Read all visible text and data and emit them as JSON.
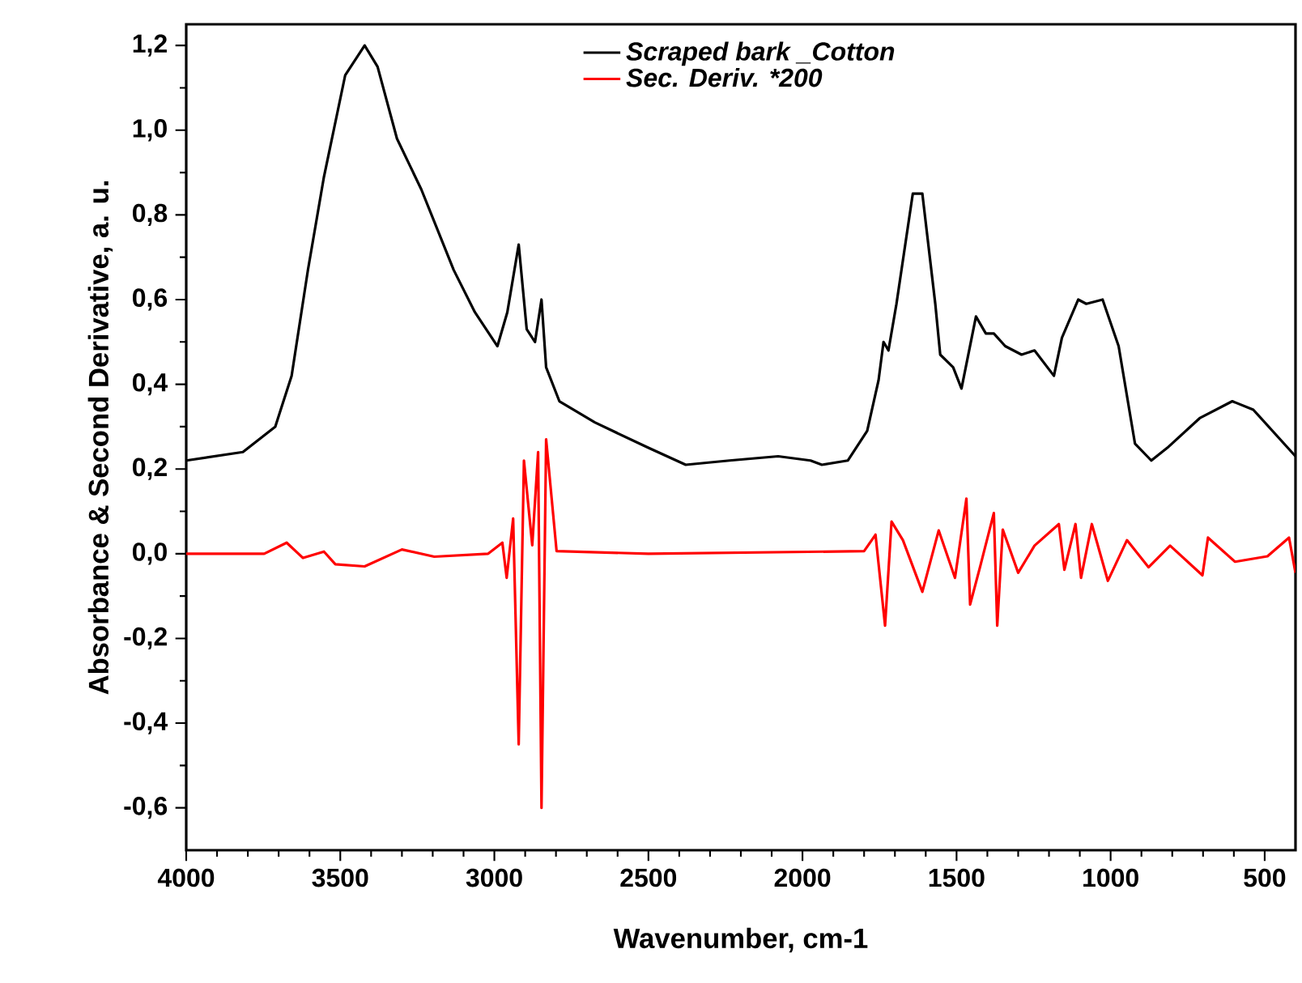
{
  "chart_data": {
    "type": "line",
    "xlabel": "Wavenumber, cm-1",
    "ylabel": "Absorbance & Second Derivative, a. u.",
    "xlim": [
      4000,
      400
    ],
    "ylim": [
      -0.7,
      1.25
    ],
    "xticks": [
      4000,
      3500,
      3000,
      2500,
      2000,
      1500,
      1000,
      500
    ],
    "yticks": [
      {
        "value": -0.6,
        "label": "-0,6"
      },
      {
        "value": -0.4,
        "label": "-0,4"
      },
      {
        "value": -0.2,
        "label": "-0,2"
      },
      {
        "value": 0,
        "label": "0,0"
      },
      {
        "value": 0.2,
        "label": "0,2"
      },
      {
        "value": 0.4,
        "label": "0,4"
      },
      {
        "value": 0.6,
        "label": "0,6"
      },
      {
        "value": 0.8,
        "label": "0,8"
      },
      {
        "value": 1.0,
        "label": "1,0"
      },
      {
        "value": 1.2,
        "label": "1,2"
      }
    ],
    "legend": "top",
    "grid": false,
    "marker": "none",
    "line_style": "solid",
    "series": [
      {
        "name": "Scraped bark _Cotton",
        "color": "#000000",
        "x": [
          4000,
          3816,
          3711,
          3658,
          3605,
          3553,
          3484,
          3421,
          3379,
          3316,
          3237,
          3132,
          3063,
          2990,
          2958,
          2921,
          2895,
          2868,
          2847,
          2832,
          2789,
          2674,
          2500,
          2379,
          2237,
          2079,
          1974,
          1937,
          1853,
          1790,
          1753,
          1737,
          1721,
          1695,
          1642,
          1611,
          1569,
          1553,
          1511,
          1484,
          1437,
          1405,
          1379,
          1342,
          1289,
          1247,
          1184,
          1158,
          1105,
          1079,
          1026,
          974,
          921,
          868,
          816,
          711,
          605,
          537,
          400
        ],
        "values": [
          0.22,
          0.24,
          0.3,
          0.42,
          0.67,
          0.89,
          1.13,
          1.2,
          1.15,
          0.98,
          0.86,
          0.67,
          0.57,
          0.49,
          0.57,
          0.73,
          0.53,
          0.5,
          0.6,
          0.44,
          0.36,
          0.31,
          0.25,
          0.21,
          0.22,
          0.23,
          0.22,
          0.21,
          0.22,
          0.29,
          0.41,
          0.5,
          0.48,
          0.59,
          0.85,
          0.85,
          0.59,
          0.47,
          0.44,
          0.39,
          0.56,
          0.52,
          0.52,
          0.49,
          0.47,
          0.48,
          0.42,
          0.51,
          0.6,
          0.59,
          0.6,
          0.49,
          0.26,
          0.22,
          0.25,
          0.32,
          0.36,
          0.34,
          0.23
        ]
      },
      {
        "name": "Sec. Deriv. *200",
        "color": "#ff0000",
        "x": [
          4000,
          3747,
          3674,
          3621,
          3553,
          3516,
          3421,
          3300,
          3195,
          3020,
          2974,
          2960,
          2939,
          2921,
          2904,
          2877,
          2858,
          2847,
          2832,
          2798,
          2500,
          1800,
          1763,
          1732,
          1711,
          1674,
          1611,
          1558,
          1505,
          1468,
          1456,
          1424,
          1379,
          1368,
          1350,
          1300,
          1247,
          1168,
          1150,
          1114,
          1096,
          1061,
          1009,
          947,
          877,
          807,
          702,
          684,
          596,
          491,
          421,
          400
        ],
        "values": [
          0,
          0,
          0.026,
          -0.01,
          0.005,
          -0.025,
          -0.03,
          0.01,
          -0.007,
          0,
          0.026,
          -0.057,
          0.083,
          -0.45,
          0.22,
          0.02,
          0.24,
          -0.6,
          0.27,
          0.006,
          0,
          0.006,
          0.045,
          -0.17,
          0.076,
          0.032,
          -0.09,
          0.055,
          -0.057,
          0.13,
          -0.12,
          -0.032,
          0.096,
          -0.17,
          0.057,
          -0.045,
          0.019,
          0.07,
          -0.038,
          0.07,
          -0.057,
          0.07,
          -0.064,
          0.032,
          -0.032,
          0.019,
          -0.051,
          0.038,
          -0.019,
          -0.006,
          0.038,
          -0.045
        ]
      }
    ]
  }
}
